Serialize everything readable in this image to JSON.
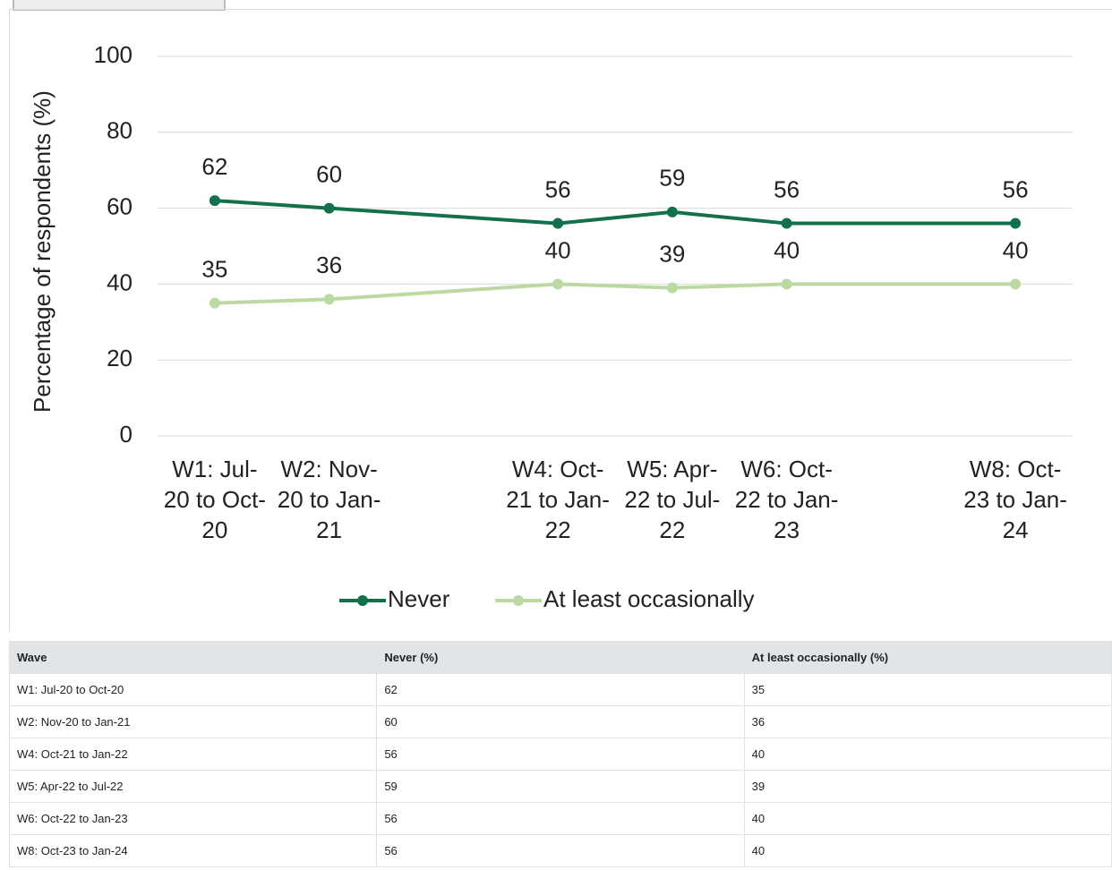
{
  "chart_data": {
    "type": "line",
    "y_label": "Percentage of respondents (%)",
    "categories": [
      "W1: Jul-20 to Oct-20",
      "W2: Nov-20 to Jan-21",
      null,
      "W4: Oct-21 to Jan-22",
      "W5: Apr-22 to Jul-22",
      "W6: Oct-22 to Jan-23",
      null,
      "W8: Oct-23 to Jan-24"
    ],
    "series": [
      {
        "name": "Never",
        "color": "#12704a",
        "values": [
          62,
          60,
          null,
          56,
          59,
          56,
          null,
          56
        ]
      },
      {
        "name": "At least occasionally",
        "color": "#bcd9a2",
        "values": [
          35,
          36,
          null,
          40,
          39,
          40,
          null,
          40
        ]
      }
    ],
    "ylim": [
      0,
      100
    ],
    "yticks": [
      0,
      20,
      40,
      60,
      80,
      100
    ],
    "grid": true,
    "connect_gaps": true,
    "legend": "bottom"
  },
  "table": {
    "columns": [
      "Wave",
      "Never (%)",
      "At least occasionally (%)"
    ],
    "rows": [
      [
        "W1: Jul-20 to Oct-20",
        62,
        35
      ],
      [
        "W2: Nov-20 to Jan-21",
        60,
        36
      ],
      [
        "W4: Oct-21 to Jan-22",
        56,
        40
      ],
      [
        "W5: Apr-22 to Jul-22",
        59,
        39
      ],
      [
        "W6: Oct-22 to Jan-23",
        56,
        40
      ],
      [
        "W8: Oct-23 to Jan-24",
        56,
        40
      ]
    ]
  }
}
